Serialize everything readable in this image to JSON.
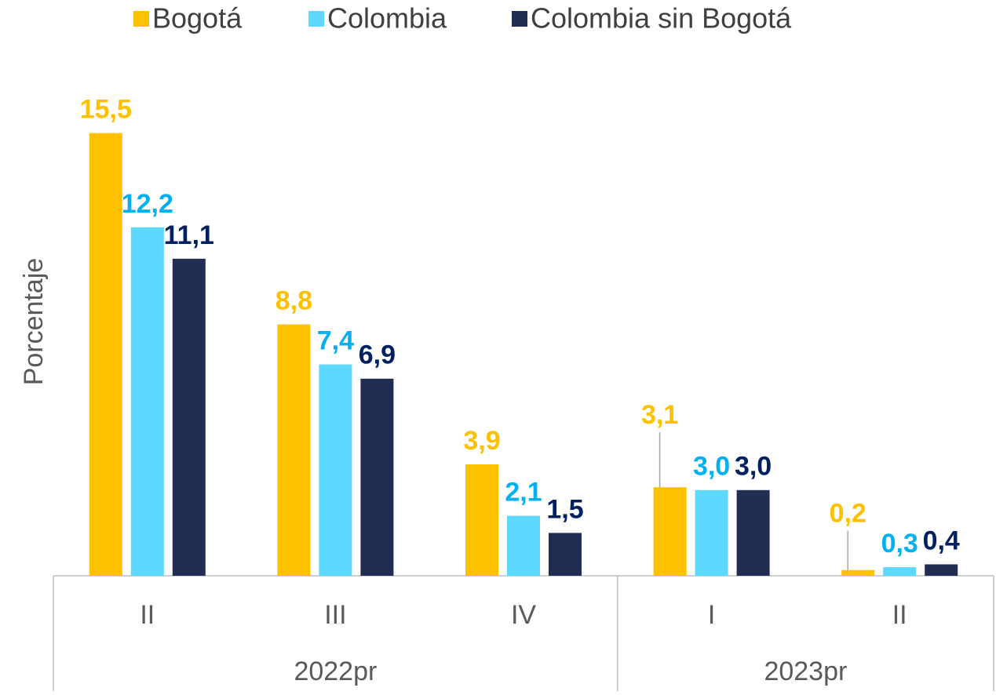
{
  "chart_data": {
    "type": "bar",
    "y_axis_label": "Porcentaje",
    "categories": [
      "II",
      "III",
      "IV",
      "I",
      "II"
    ],
    "category_groups": [
      "2022pr",
      "2022pr",
      "2022pr",
      "2023pr",
      "2023pr"
    ],
    "series": [
      {
        "name": "Bogotá",
        "color": "#FFC000",
        "label_color": "#FFC000",
        "values": [
          15.5,
          8.8,
          3.9,
          3.1,
          0.2
        ],
        "value_labels": [
          "15,5",
          "8,8",
          "3,9",
          "3,1",
          "0,2"
        ]
      },
      {
        "name": "Colombia",
        "color": "#5DD9FF",
        "label_color": "#00B0F0",
        "values": [
          12.2,
          7.4,
          2.1,
          3.0,
          0.3
        ],
        "value_labels": [
          "12,2",
          "7,4",
          "2,1",
          "3,0",
          "0,3"
        ]
      },
      {
        "name": "Colombia sin Bogotá",
        "color": "#222D54",
        "label_color": "#002060",
        "values": [
          11.1,
          6.9,
          1.5,
          3.0,
          0.4
        ],
        "value_labels": [
          "11,1",
          "6,9",
          "1,5",
          "3,0",
          "0,4"
        ]
      }
    ],
    "ylim": [
      0,
      17
    ],
    "legend": "top",
    "grid": false
  }
}
